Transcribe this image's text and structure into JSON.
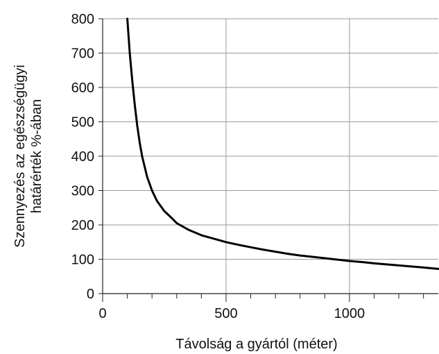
{
  "chart_data": {
    "type": "line",
    "title": "",
    "xlabel": "Távolság a gyártól (méter)",
    "ylabel_lines": [
      "Szennyezés az egészségügyi",
      "határérték %-ában"
    ],
    "xlim": [
      0,
      1360
    ],
    "ylim": [
      0,
      800
    ],
    "x_ticks": [
      0,
      500,
      1000
    ],
    "y_ticks": [
      0,
      100,
      200,
      300,
      400,
      500,
      600,
      700,
      800
    ],
    "x_minor_step": 100,
    "grid": true,
    "legend": "none",
    "series": [
      {
        "x": [
          100,
          110,
          120,
          130,
          140,
          150,
          160,
          180,
          200,
          220,
          250,
          280,
          300,
          350,
          400,
          450,
          500,
          550,
          600,
          650,
          700,
          750,
          800,
          850,
          900,
          950,
          1000,
          1050,
          1100,
          1150,
          1200,
          1250,
          1300,
          1360
        ],
        "y": [
          800,
          700,
          620,
          550,
          490,
          440,
          400,
          340,
          300,
          270,
          240,
          220,
          205,
          185,
          170,
          160,
          150,
          142,
          135,
          128,
          122,
          116,
          111,
          107,
          103,
          99,
          95,
          92,
          88,
          85,
          82,
          79,
          76,
          72
        ],
        "color": "#000000"
      }
    ]
  }
}
